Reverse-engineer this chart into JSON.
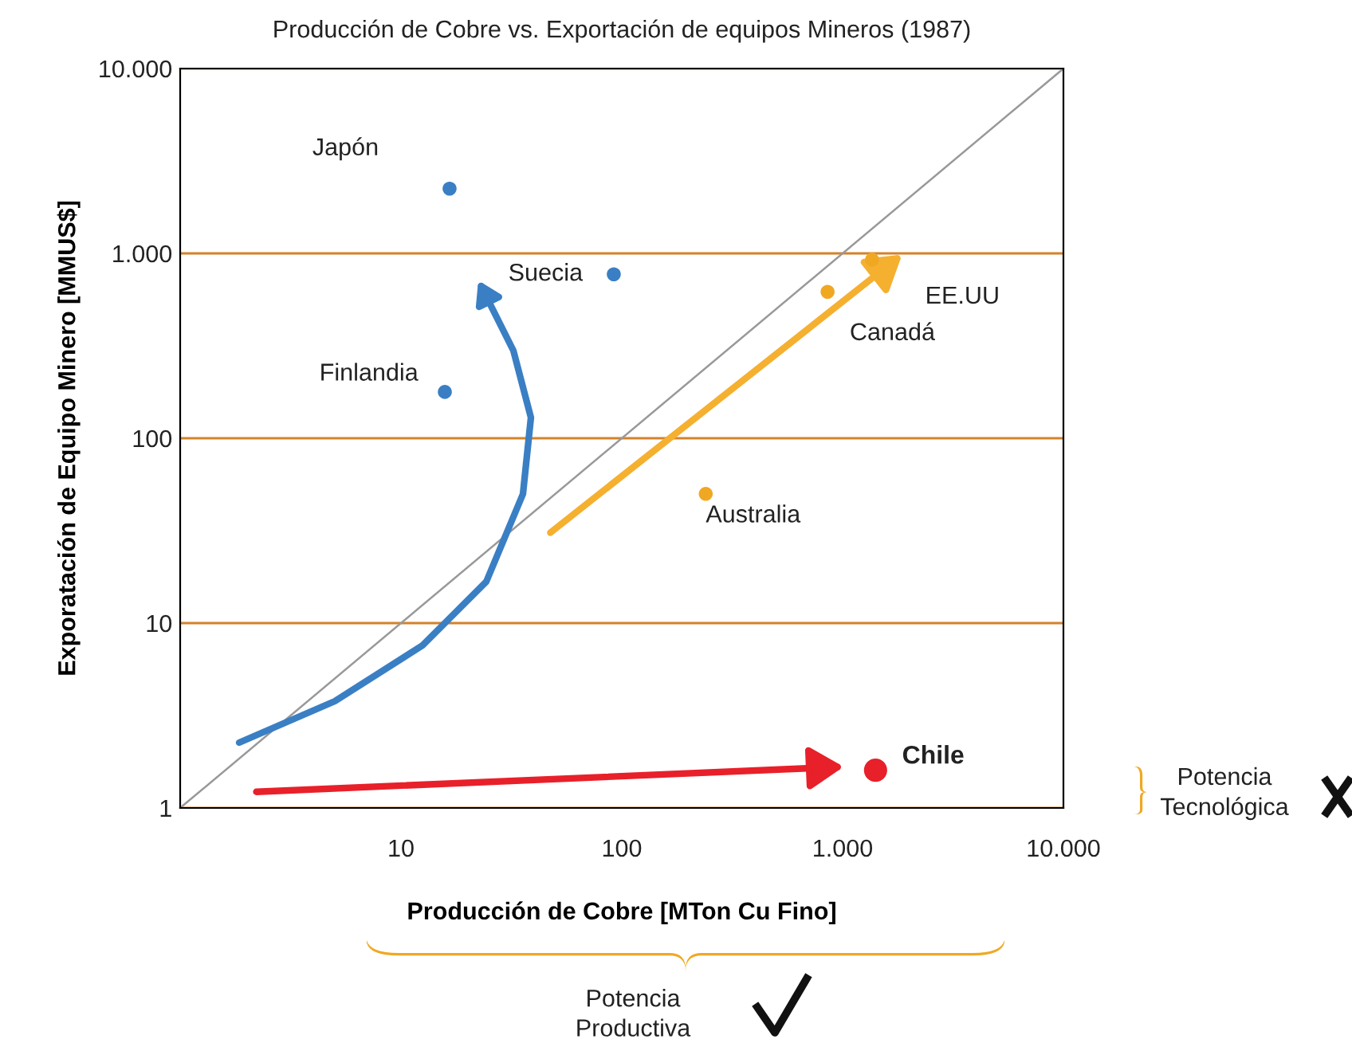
{
  "chart_data": {
    "type": "scatter",
    "title": "Producción de Cobre vs. Exportación de equipos Mineros (1987)",
    "xlabel": "Producción de Cobre [MTon Cu Fino]",
    "ylabel": "Exporatación de Equipo Minero [MMUS$]",
    "log": "xy",
    "xlim": [
      1,
      10000
    ],
    "ylim": [
      1,
      10000
    ],
    "xticks": [
      10,
      100,
      {
        "value": 1000,
        "label": "1.000"
      },
      {
        "value": 10000,
        "label": "10.000"
      }
    ],
    "yticks": [
      1,
      10,
      100,
      {
        "value": 1000,
        "label": "1.000"
      },
      {
        "value": 10000,
        "label": "10.000"
      }
    ],
    "grid": "y",
    "marker": "circle",
    "series": [
      {
        "name": "Japón",
        "color": "#3a7fc4",
        "x": [
          16.6
        ],
        "values": [
          2240
        ]
      },
      {
        "name": "Suecia",
        "color": "#3a7fc4",
        "x": [
          92
        ],
        "values": [
          770
        ]
      },
      {
        "name": "Finlandia",
        "color": "#3a7fc4",
        "x": [
          15.8
        ],
        "values": [
          178
        ]
      },
      {
        "name": "EE.UU",
        "color": "#f0a823",
        "x": [
          1360
        ],
        "values": [
          925
        ]
      },
      {
        "name": "Canadá",
        "color": "#f0a823",
        "x": [
          855
        ],
        "values": [
          620
        ]
      },
      {
        "name": "Australia",
        "color": "#f0a823",
        "x": [
          240
        ],
        "values": [
          50
        ]
      },
      {
        "name": "Chile",
        "color": "#e8202a",
        "x": [
          1410
        ],
        "values": [
          1.6
        ]
      },
      {
        "type": "line",
        "color": "#999999",
        "x": [
          1,
          10000
        ],
        "values": [
          1,
          10000
        ],
        "marker": "none"
      }
    ],
    "annotations": [
      "Potencia Tecnológica",
      "Potencia Productiva"
    ]
  }
}
